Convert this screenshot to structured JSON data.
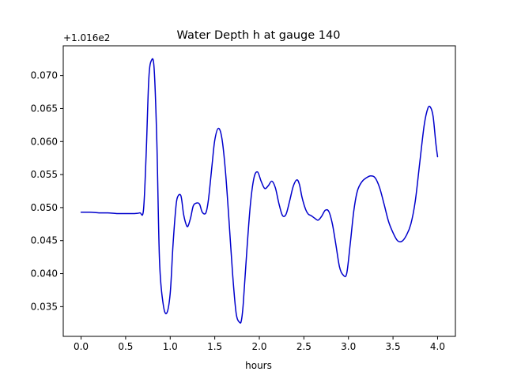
{
  "chart_data": {
    "type": "line",
    "title": "Water Depth h at gauge 140",
    "xlabel": "hours",
    "ylabel": "",
    "offset_text": "+1.016e2",
    "xlim": [
      -0.2,
      4.2
    ],
    "ylim": [
      0.0305,
      0.0745
    ],
    "xticks": [
      0.0,
      0.5,
      1.0,
      1.5,
      2.0,
      2.5,
      3.0,
      3.5,
      4.0
    ],
    "xtick_labels": [
      "0.0",
      "0.5",
      "1.0",
      "1.5",
      "2.0",
      "2.5",
      "3.0",
      "3.5",
      "4.0"
    ],
    "yticks": [
      0.035,
      0.04,
      0.045,
      0.05,
      0.055,
      0.06,
      0.065,
      0.07
    ],
    "ytick_labels": [
      "0.035",
      "0.040",
      "0.045",
      "0.050",
      "0.055",
      "0.060",
      "0.065",
      "0.070"
    ],
    "grid": false,
    "line_color": "#0000cc",
    "series": [
      {
        "x": [
          0.0,
          0.1,
          0.2,
          0.3,
          0.4,
          0.5,
          0.6,
          0.66,
          0.7,
          0.73,
          0.76,
          0.79,
          0.82,
          0.85,
          0.88,
          0.92,
          0.96,
          1.0,
          1.03,
          1.06,
          1.08,
          1.12,
          1.15,
          1.18,
          1.2,
          1.23,
          1.26,
          1.3,
          1.33,
          1.36,
          1.4,
          1.43,
          1.47,
          1.5,
          1.54,
          1.58,
          1.62,
          1.66,
          1.7,
          1.74,
          1.78,
          1.8,
          1.82,
          1.86,
          1.9,
          1.94,
          1.98,
          2.02,
          2.06,
          2.1,
          2.14,
          2.18,
          2.22,
          2.26,
          2.3,
          2.34,
          2.38,
          2.42,
          2.45,
          2.48,
          2.52,
          2.55,
          2.58,
          2.62,
          2.66,
          2.7,
          2.74,
          2.78,
          2.82,
          2.86,
          2.9,
          2.94,
          2.98,
          3.02,
          3.06,
          3.1,
          3.15,
          3.2,
          3.25,
          3.3,
          3.35,
          3.4,
          3.45,
          3.5,
          3.55,
          3.6,
          3.65,
          3.7,
          3.75,
          3.8,
          3.85,
          3.89,
          3.92,
          3.95,
          3.98,
          4.0
        ],
        "y": [
          0.0493,
          0.0493,
          0.0492,
          0.0492,
          0.0491,
          0.0491,
          0.0491,
          0.0492,
          0.0496,
          0.058,
          0.0695,
          0.0723,
          0.071,
          0.06,
          0.042,
          0.0355,
          0.034,
          0.037,
          0.044,
          0.0495,
          0.0515,
          0.0518,
          0.049,
          0.0474,
          0.0472,
          0.0485,
          0.0503,
          0.0507,
          0.0505,
          0.0493,
          0.0492,
          0.0513,
          0.0565,
          0.0602,
          0.062,
          0.0605,
          0.0555,
          0.048,
          0.04,
          0.034,
          0.0326,
          0.033,
          0.0355,
          0.0435,
          0.0505,
          0.0545,
          0.0554,
          0.054,
          0.0529,
          0.0533,
          0.054,
          0.053,
          0.0506,
          0.0488,
          0.049,
          0.051,
          0.0532,
          0.0542,
          0.0535,
          0.0515,
          0.0497,
          0.049,
          0.0488,
          0.0484,
          0.0481,
          0.0487,
          0.0496,
          0.0494,
          0.0475,
          0.0443,
          0.041,
          0.0398,
          0.04,
          0.0445,
          0.0495,
          0.0525,
          0.0539,
          0.0545,
          0.0548,
          0.0545,
          0.053,
          0.0505,
          0.0479,
          0.0462,
          0.045,
          0.0449,
          0.0458,
          0.0475,
          0.051,
          0.0568,
          0.0625,
          0.065,
          0.0652,
          0.0638,
          0.0598,
          0.0577
        ]
      }
    ]
  }
}
